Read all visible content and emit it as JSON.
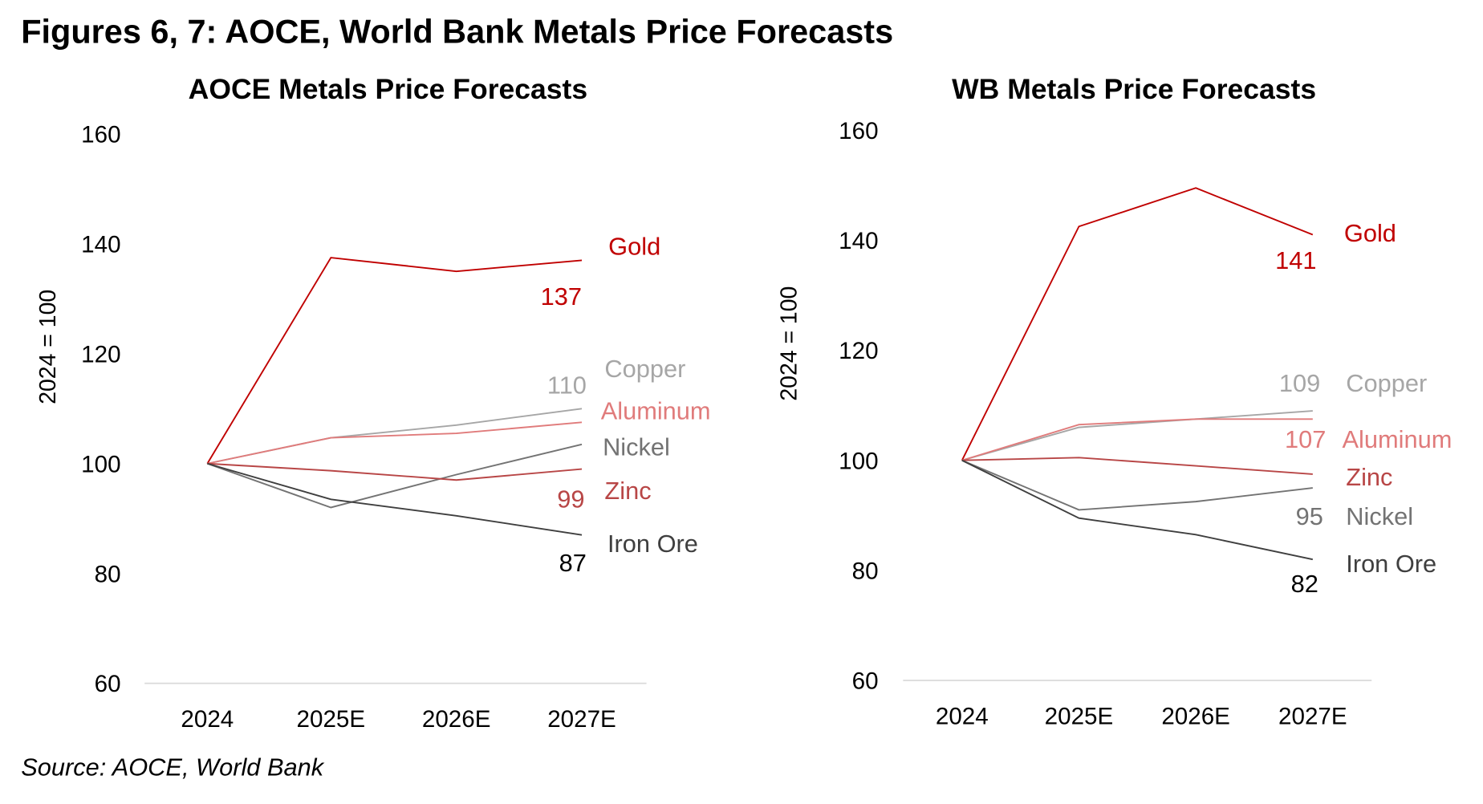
{
  "title": "Figures 6, 7: AOCE, World Bank Metals Price Forecasts",
  "source": "Source: AOCE, World Bank",
  "chart_data": [
    {
      "type": "line",
      "title": "AOCE Metals Price Forecasts",
      "ylabel": "2024 = 100",
      "xlabel": "",
      "categories": [
        "2024",
        "2025E",
        "2026E",
        "2027E"
      ],
      "ylim": [
        60,
        160
      ],
      "yticks": [
        "60",
        "80",
        "100",
        "120",
        "140",
        "160"
      ],
      "grid": false,
      "legend": "inline labels at right end",
      "series": [
        {
          "name": "Gold",
          "values": [
            100,
            137.5,
            135,
            137
          ],
          "end_label": "137",
          "color": "#c00000"
        },
        {
          "name": "Copper",
          "values": [
            100,
            104.7,
            107,
            110
          ],
          "end_label": "110",
          "color": "#a6a6a6"
        },
        {
          "name": "Aluminum",
          "values": [
            100,
            104.7,
            105.5,
            107.5
          ],
          "end_label": "",
          "color": "#e07b7b"
        },
        {
          "name": "Nickel",
          "values": [
            100,
            92,
            98,
            103.5
          ],
          "end_label": "",
          "color": "#737373"
        },
        {
          "name": "Zinc",
          "values": [
            100,
            98.7,
            97,
            99
          ],
          "end_label": "99",
          "color": "#b84646"
        },
        {
          "name": "Iron Ore",
          "values": [
            100,
            93.5,
            90.5,
            87
          ],
          "end_label": "87",
          "color": "#3f3f3f"
        }
      ]
    },
    {
      "type": "line",
      "title": "WB Metals Price Forecasts",
      "ylabel": "2024 = 100",
      "xlabel": "",
      "categories": [
        "2024",
        "2025E",
        "2026E",
        "2027E"
      ],
      "ylim": [
        60,
        160
      ],
      "yticks": [
        "60",
        "80",
        "100",
        "120",
        "140",
        "160"
      ],
      "grid": false,
      "legend": "inline labels at right end",
      "series": [
        {
          "name": "Gold",
          "values": [
            100,
            142.5,
            149.5,
            141
          ],
          "end_label": "141",
          "color": "#c00000"
        },
        {
          "name": "Copper",
          "values": [
            100,
            106,
            107.5,
            109
          ],
          "end_label": "109",
          "color": "#a6a6a6"
        },
        {
          "name": "Aluminum",
          "values": [
            100,
            106.5,
            107.5,
            107.5
          ],
          "end_label": "107",
          "color": "#e07b7b"
        },
        {
          "name": "Zinc",
          "values": [
            100,
            100.5,
            99,
            97.5
          ],
          "end_label": "",
          "color": "#b84646"
        },
        {
          "name": "Nickel",
          "values": [
            100,
            91,
            92.5,
            95
          ],
          "end_label": "95",
          "color": "#737373"
        },
        {
          "name": "Iron Ore",
          "values": [
            100,
            89.5,
            86.5,
            82
          ],
          "end_label": "82",
          "color": "#3f3f3f"
        }
      ]
    }
  ]
}
